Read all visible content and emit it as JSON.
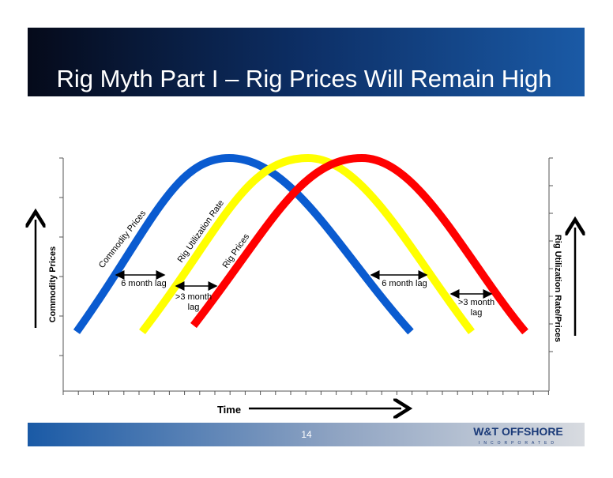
{
  "header": {
    "title": "Rig Myth Part I – Rig Prices Will Remain High"
  },
  "curve_labels": [
    "Commodity Prices",
    "Rig Utilization Rate",
    "Rig Prices"
  ],
  "lags": [
    {
      "lines": [
        "6 month lag"
      ]
    },
    {
      "lines": [
        ">3 month",
        "lag"
      ]
    },
    {
      "lines": [
        "6 month lag"
      ]
    },
    {
      "lines": [
        ">3 month",
        "lag"
      ]
    }
  ],
  "axes": {
    "left": "Commodity Prices",
    "right": "Rig Utilization Rate/Prices",
    "bottom": "Time"
  },
  "footer": {
    "page": "14",
    "logo": "W&T OFFSHORE",
    "logo_sub": "INCORPORATED"
  }
}
